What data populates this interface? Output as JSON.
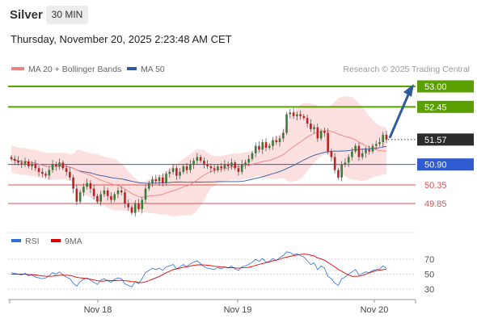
{
  "header": {
    "title": "Silver",
    "timeframe": "30 MIN",
    "datetime": "Thursday, November 20, 2025 2:23:48 AM CET"
  },
  "legend": {
    "ma20": "MA 20 + Bollinger Bands",
    "ma50": "MA 50",
    "ma20_color": "#f08080",
    "ma50_color": "#2f5a9e"
  },
  "credit": "Research © 2025 Trading Central",
  "rsi_legend": {
    "rsi": "RSI",
    "ma9": "9MA",
    "rsi_color": "#2f6fdd",
    "ma9_color": "#e00000"
  },
  "chart_data": [
    {
      "type": "candlestick",
      "title": "Silver",
      "ylim": [
        49.45,
        53.25
      ],
      "last_price": 51.57,
      "x_labels": [
        "Nov 18",
        "Nov 19",
        "Nov 20"
      ],
      "levels": [
        {
          "value": 53.0,
          "label": "53.00",
          "color": "#5aa000",
          "style": "resistance"
        },
        {
          "value": 52.45,
          "label": "52.45",
          "color": "#5aa000",
          "style": "resistance"
        },
        {
          "value": 50.9,
          "label": "50.90",
          "color": "#2f5ad0",
          "style": "pivot"
        },
        {
          "value": 50.35,
          "label": "50.35",
          "color": "#e05050",
          "style": "support"
        },
        {
          "value": 49.85,
          "label": "49.85",
          "color": "#e05050",
          "style": "support"
        }
      ],
      "target_arrow": {
        "from": 51.57,
        "to": 53.0
      },
      "closes": [
        51.05,
        51.0,
        50.95,
        50.92,
        50.98,
        50.85,
        50.9,
        50.8,
        50.7,
        50.65,
        50.6,
        50.75,
        50.9,
        50.85,
        50.95,
        50.8,
        50.7,
        50.55,
        50.25,
        49.9,
        50.15,
        50.3,
        50.4,
        50.25,
        50.05,
        49.9,
        50.1,
        50.2,
        50.05,
        49.95,
        50.1,
        50.2,
        50.15,
        49.85,
        49.75,
        49.6,
        49.85,
        49.7,
        49.95,
        50.25,
        50.4,
        50.5,
        50.45,
        50.55,
        50.4,
        50.65,
        50.7,
        50.8,
        50.6,
        50.7,
        50.85,
        50.75,
        50.9,
        51.0,
        51.1,
        51.0,
        50.9,
        50.85,
        50.8,
        50.75,
        50.85,
        50.8,
        50.9,
        50.85,
        50.95,
        50.8,
        50.7,
        50.9,
        50.95,
        51.05,
        51.2,
        51.4,
        51.3,
        51.5,
        51.35,
        51.4,
        51.55,
        51.5,
        51.6,
        51.75,
        52.25,
        52.3,
        52.2,
        52.25,
        52.2,
        52.15,
        52.0,
        51.85,
        51.9,
        51.6,
        51.8,
        51.75,
        51.25,
        51.1,
        50.75,
        50.55,
        50.9,
        50.95,
        51.1,
        51.25,
        51.4,
        51.1,
        51.2,
        51.3,
        51.25,
        51.4,
        51.45,
        51.5,
        51.7,
        51.57
      ],
      "rsi": {
        "ylim": [
          20,
          80
        ],
        "ticks": [
          70,
          50,
          30
        ],
        "values": [
          52,
          51,
          50,
          49,
          51,
          48,
          49,
          46,
          45,
          44,
          45,
          48,
          52,
          50,
          53,
          49,
          46,
          44,
          38,
          34,
          40,
          43,
          45,
          42,
          39,
          36,
          42,
          44,
          41,
          39,
          43,
          45,
          44,
          37,
          35,
          33,
          40,
          37,
          44,
          52,
          55,
          58,
          56,
          58,
          55,
          60,
          61,
          63,
          57,
          60,
          63,
          60,
          64,
          66,
          68,
          64,
          60,
          58,
          57,
          56,
          59,
          57,
          60,
          58,
          61,
          57,
          55,
          60,
          61,
          63,
          66,
          70,
          67,
          71,
          66,
          67,
          71,
          68,
          72,
          75,
          80,
          79,
          76,
          77,
          75,
          73,
          68,
          63,
          65,
          56,
          61,
          58,
          47,
          44,
          38,
          35,
          44,
          46,
          50,
          53,
          56,
          49,
          51,
          53,
          52,
          55,
          56,
          57,
          61,
          58
        ],
        "ma9": [
          50,
          50,
          50,
          50,
          50,
          49.5,
          49.4,
          48.9,
          48.3,
          47.6,
          47.2,
          47.1,
          47.4,
          47.8,
          48.5,
          48.6,
          48.5,
          48.3,
          47.2,
          45.8,
          45.0,
          44.6,
          44.0,
          43.2,
          42.2,
          41.2,
          40.6,
          40.7,
          41.7,
          41.5,
          41.3,
          41.6,
          41.8,
          41.2,
          40.8,
          40.0,
          39.9,
          38.9,
          38.8,
          39.6,
          41.3,
          43.3,
          45.0,
          46.9,
          49.2,
          51.9,
          53.9,
          56.0,
          57.0,
          58.0,
          59.3,
          59.8,
          60.9,
          61.8,
          62.4,
          62.5,
          62.3,
          62.0,
          61.3,
          60.5,
          60.2,
          59.6,
          59.3,
          58.6,
          58.6,
          58.3,
          58.0,
          58.5,
          58.8,
          59.2,
          60.3,
          61.7,
          63.0,
          64.3,
          65.3,
          66.4,
          67.9,
          68.8,
          70.0,
          71.6,
          72.8,
          73.8,
          74.8,
          75.6,
          76.4,
          76.8,
          76.5,
          75.4,
          74.4,
          71.7,
          70.4,
          68.6,
          65.7,
          62.8,
          59.7,
          56.3,
          53.9,
          51.2,
          48.9,
          47.1,
          47.1,
          47.3,
          48.3,
          50.0,
          51.6,
          53.5,
          54.6,
          55.4,
          56.0,
          56.4
        ]
      }
    }
  ]
}
